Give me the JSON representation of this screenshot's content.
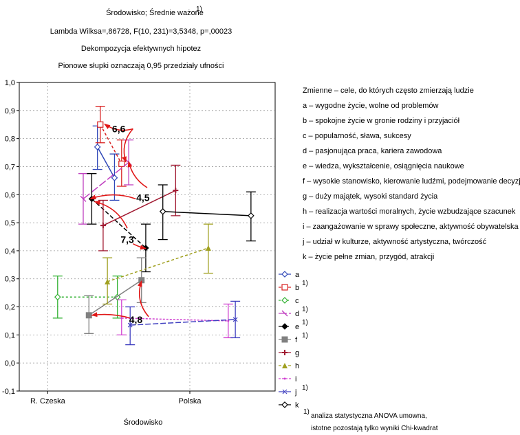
{
  "chart_data": {
    "type": "line",
    "title": "Środowisko; Średnie ważone",
    "title_mark": "1)",
    "subtitle": [
      "Lambda Wilksa=,86728, F(10, 231)=3,5348, p=,00023",
      "Dekompozycja efektywnych hipotez",
      "Pionowe słupki oznaczają 0,95 przedziały ufności"
    ],
    "xlabel": "Środowisko",
    "ylabel": "",
    "categories": [
      "R. Czeska",
      "Polska"
    ],
    "ylim": [
      -0.1,
      1.0
    ],
    "yticks": [
      "-0,1",
      "0,0",
      "0,1",
      "0,2",
      "0,3",
      "0,4",
      "0,5",
      "0,6",
      "0,7",
      "0,8",
      "0,9",
      "1,0"
    ],
    "grid": true,
    "series": [
      {
        "name": "a",
        "mark": "",
        "color": "#3048b8",
        "dash": "",
        "marker": "diamond-open",
        "x": [
          0.35,
          0.47
        ],
        "y": [
          0.77,
          0.66
        ],
        "lo": [
          0.69,
          0.58
        ],
        "hi": [
          0.845,
          0.745
        ]
      },
      {
        "name": "b",
        "mark": "1)",
        "color": "#d82020",
        "dash": "4,3",
        "marker": "square-open",
        "x": [
          0.37,
          0.52
        ],
        "y": [
          0.85,
          0.71
        ],
        "lo": [
          0.785,
          0.63
        ],
        "hi": [
          0.915,
          0.795
        ]
      },
      {
        "name": "c",
        "mark": "",
        "color": "#30b030",
        "dash": "3,3",
        "marker": "diamond-open",
        "x": [
          0.07,
          0.49
        ],
        "y": [
          0.235,
          0.235
        ],
        "lo": [
          0.16,
          0.16
        ],
        "hi": [
          0.31,
          0.31
        ]
      },
      {
        "name": "d",
        "mark": "1)",
        "color": "#c040c0",
        "dash": "12,3",
        "marker": "slash",
        "x": [
          0.25,
          0.57
        ],
        "y": [
          0.585,
          0.715
        ],
        "lo": [
          0.495,
          0.635
        ],
        "hi": [
          0.675,
          0.795
        ]
      },
      {
        "name": "e",
        "mark": "1)",
        "color": "#000000",
        "dash": "6,3",
        "marker": "diamond-filled",
        "x": [
          0.31,
          0.69
        ],
        "y": [
          0.585,
          0.41
        ],
        "lo": [
          0.495,
          0.325
        ],
        "hi": [
          0.675,
          0.495
        ]
      },
      {
        "name": "f",
        "mark": "1)",
        "color": "#808080",
        "dash": "",
        "marker": "square-filled",
        "x": [
          0.29,
          0.66
        ],
        "y": [
          0.17,
          0.295
        ],
        "lo": [
          0.105,
          0.215
        ],
        "hi": [
          0.24,
          0.375
        ]
      },
      {
        "name": "g",
        "mark": "",
        "color": "#a01830",
        "dash": "",
        "marker": "plus-filled",
        "x": [
          0.39,
          0.9
        ],
        "y": [
          0.49,
          0.615
        ],
        "lo": [
          0.4,
          0.525
        ],
        "hi": [
          0.58,
          0.705
        ]
      },
      {
        "name": "h",
        "mark": "",
        "color": "#a0a020",
        "dash": "4,3",
        "marker": "triangle-filled",
        "x": [
          0.42,
          1.13
        ],
        "y": [
          0.29,
          0.41
        ],
        "lo": [
          0.21,
          0.32
        ],
        "hi": [
          0.375,
          0.495
        ]
      },
      {
        "name": "i",
        "mark": "",
        "color": "#d040d0",
        "dash": "3,2",
        "marker": "none",
        "x": [
          0.52,
          1.27
        ],
        "y": [
          0.16,
          0.15
        ],
        "lo": [
          0.1,
          0.09
        ],
        "hi": [
          0.225,
          0.21
        ]
      },
      {
        "name": "j",
        "mark": "1)",
        "color": "#4040c0",
        "dash": "8,3",
        "marker": "x-mark",
        "x": [
          0.58,
          1.32
        ],
        "y": [
          0.135,
          0.155
        ],
        "lo": [
          0.065,
          0.09
        ],
        "hi": [
          0.2,
          0.22
        ]
      },
      {
        "name": "k",
        "mark": "",
        "color": "#000000",
        "dash": "",
        "marker": "diamond-open",
        "x": [
          0.81,
          1.43
        ],
        "y": [
          0.54,
          0.525
        ],
        "lo": [
          0.44,
          0.435
        ],
        "hi": [
          0.635,
          0.61
        ]
      }
    ],
    "annotations": [
      {
        "text": "6,6",
        "x": 0.5,
        "y": 0.835
      },
      {
        "text": "4,5",
        "x": 0.67,
        "y": 0.59
      },
      {
        "text": "7,3",
        "x": 0.56,
        "y": 0.44
      },
      {
        "text": "4,8",
        "x": 0.62,
        "y": 0.155
      }
    ],
    "arrows": [
      {
        "x1": 0.6,
        "y1": 0.835,
        "x2": 0.55,
        "y2": 0.716,
        "r": 0.8
      },
      {
        "x1": 0.6,
        "y1": 0.835,
        "x2": 0.4,
        "y2": 0.852,
        "r": -0.7
      },
      {
        "x1": 0.7,
        "y1": 0.625,
        "x2": 0.57,
        "y2": 0.718,
        "r": -0.6
      },
      {
        "x1": 0.62,
        "y1": 0.585,
        "x2": 0.3,
        "y2": 0.585,
        "r": 0.5
      },
      {
        "x1": 0.56,
        "y1": 0.48,
        "x2": 0.33,
        "y2": 0.575,
        "r": 0.7
      },
      {
        "x1": 0.6,
        "y1": 0.425,
        "x2": 0.69,
        "y2": 0.408,
        "r": 0.2
      },
      {
        "x1": 0.71,
        "y1": 0.165,
        "x2": 0.66,
        "y2": 0.292,
        "r": -0.8
      },
      {
        "x1": 0.58,
        "y1": 0.16,
        "x2": 0.31,
        "y2": 0.17,
        "r": 0.3
      }
    ],
    "legend_position": "right",
    "footnote": [
      "analiza statystyczna ANOVA umowna,",
      "istotne pozostają tylko wyniki Chi-kwadrat"
    ],
    "footnote_mark": "1)",
    "explanation": {
      "header": "Zmienne – cele, do których często zmierzają ludzie",
      "items": [
        "a – wygodne życie, wolne od problemów",
        "b – spokojne życie w gronie rodziny i przyjaciół",
        "c – popularność, sława, sukcesy",
        "d – pasjonująca praca, kariera zawodowa",
        "e – wiedza, wykształcenie, osiągnięcia naukowe",
        "f – wysokie stanowisko, kierowanie ludźmi, podejmowanie decyzji",
        "g – duży majątek, wysoki standard życia",
        "h – realizacja wartości moralnych, życie wzbudzające szacunek",
        "i – zaangażowanie w sprawy społeczne, aktywność obywatelska",
        "j – udział w kulturze, aktywność artystyczna, twórczość",
        "k – życie pełne zmian, przygód, atrakcji"
      ]
    },
    "arrow_color": "#e01818"
  }
}
